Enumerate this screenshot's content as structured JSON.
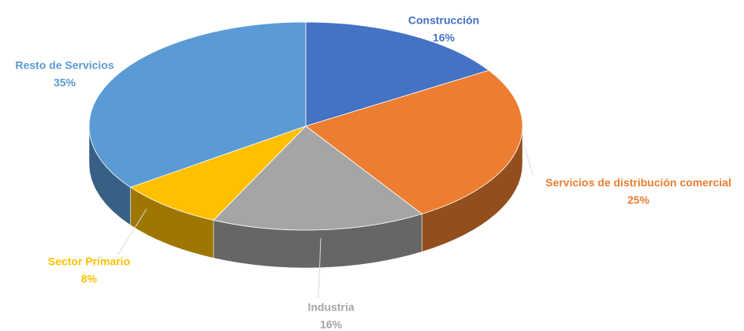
{
  "chart_data": {
    "type": "pie",
    "categories": [
      "Construcción",
      "Servicios de distribución comercial",
      "Industria",
      "Sector Primario",
      "Resto de Servicios"
    ],
    "values": [
      16,
      25,
      16,
      8,
      35
    ],
    "value_labels": [
      "16%",
      "25%",
      "16%",
      "8%",
      "35%"
    ],
    "colors": [
      "#4472c4",
      "#ed7d31",
      "#a5a5a5",
      "#ffc000",
      "#5b9bd5"
    ]
  }
}
